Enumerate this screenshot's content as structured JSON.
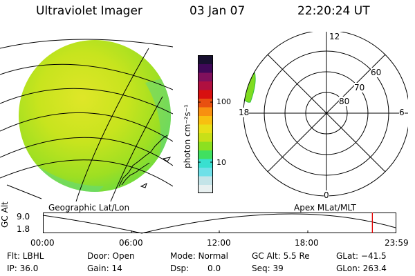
{
  "header": {
    "instrument": "Ultraviolet Imager",
    "date": "03 Jan 07",
    "time": "22:20:24 UT"
  },
  "colorbar": {
    "label": "photon cm⁻²s⁻¹",
    "tick_100": "100",
    "tick_10": "10",
    "colors": [
      "#e8f0f0",
      "#c4e4e8",
      "#6fe0e8",
      "#38e0d0",
      "#40e060",
      "#8ce020",
      "#c8e018",
      "#e8e018",
      "#f8c010",
      "#f89010",
      "#e85010",
      "#d81010",
      "#b01040",
      "#80105c",
      "#400858",
      "#181030"
    ]
  },
  "polar_plot": {
    "label_12": "12",
    "label_6": "6",
    "label_18": "18",
    "label_0": "0",
    "lat_60": "60",
    "lat_70": "70",
    "lat_80": "80"
  },
  "map_labels": {
    "left": "Geographic Lat/Lon",
    "right": "Apex MLat/MLT"
  },
  "timeline": {
    "axis_label": "GC Alt",
    "y_top": "9.0",
    "y_bottom": "1.8",
    "ticks": [
      "00:00",
      "06:00",
      "12:00",
      "18:00",
      "23:59"
    ],
    "current_time_fraction": 0.934,
    "marker_color": "#e00000"
  },
  "info": {
    "filter": "Flt: LBHL",
    "door": "Door: Open",
    "mode": "Mode: Normal",
    "gc_alt": "GC Alt: 5.5 Re",
    "glat": "GLat: −41.5",
    "ip": "IP: 36.0",
    "gain": "Gain: 14",
    "dsp_label": "Dsp:",
    "dsp_value": "0.0",
    "seq": "Seq: 39",
    "glon": "GLon: 263.4"
  }
}
